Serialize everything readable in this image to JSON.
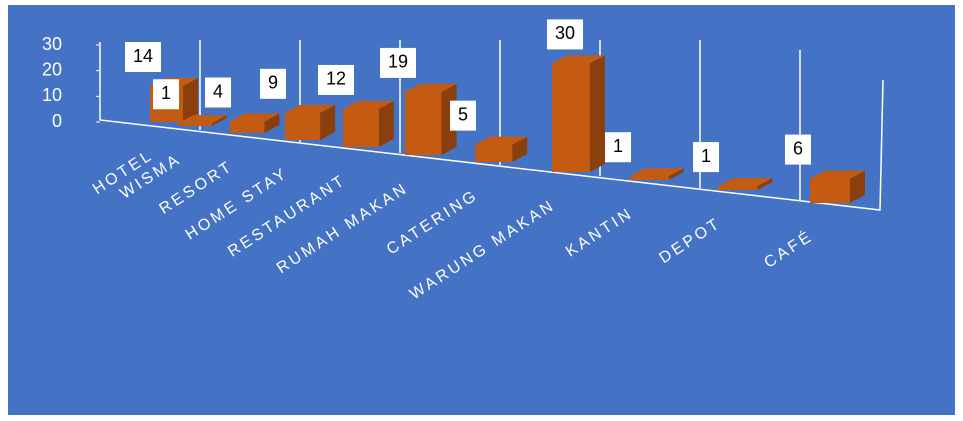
{
  "chart_data": {
    "type": "bar3d",
    "categories": [
      "HOTEL",
      "WISMA",
      "RESORT",
      "HOME STAY",
      "RESTAURANT",
      "RUMAH MAKAN",
      "CATERING",
      "WARUNG MAKAN",
      "KANTIN",
      "DEPOT",
      "CAFÉ"
    ],
    "values": [
      14,
      1,
      4,
      9,
      12,
      19,
      5,
      30,
      1,
      1,
      6
    ],
    "color": "#c55a11",
    "ylim": [
      0,
      30
    ],
    "yticks": [
      0,
      10,
      20,
      30
    ]
  }
}
